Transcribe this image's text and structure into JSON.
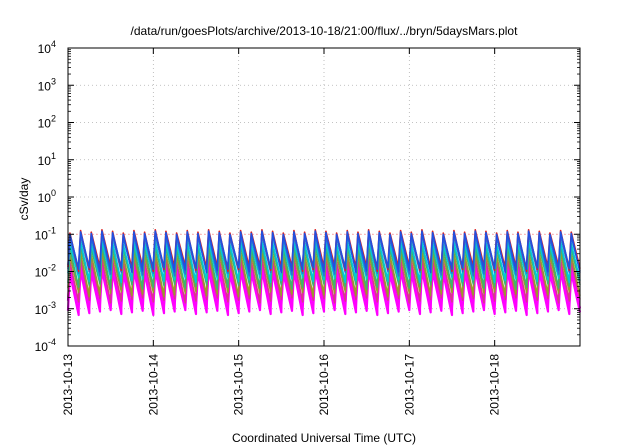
{
  "chart_data": {
    "type": "line",
    "title": "/data/run/goesPlots/archive/2013-10-18/21:00/flux/../bryn/5daysMars.plot",
    "xlabel": "Coordinated Universal Time (UTC)",
    "ylabel": "cSv/day",
    "x_ticks": [
      "2013-10-13",
      "2013-10-14",
      "2013-10-15",
      "2013-10-16",
      "2013-10-17",
      "2013-10-18"
    ],
    "xlim": [
      "2013-10-13T00:00",
      "2013-10-19T00:00"
    ],
    "y_scale": "log",
    "y_ticks": [
      {
        "base": "10",
        "exp": "-4"
      },
      {
        "base": "10",
        "exp": "-3"
      },
      {
        "base": "10",
        "exp": "-2"
      },
      {
        "base": "10",
        "exp": "-1"
      },
      {
        "base": "10",
        "exp": "0"
      },
      {
        "base": "10",
        "exp": "1"
      },
      {
        "base": "10",
        "exp": "2"
      },
      {
        "base": "10",
        "exp": "3"
      },
      {
        "base": "10",
        "exp": "4"
      }
    ],
    "ylim": [
      0.0001,
      10000
    ],
    "grid": true,
    "legend": "none",
    "reference_line": {
      "y": 0.1,
      "color": "#ff9999",
      "style": "dashed"
    },
    "sawtooth_period_hours": 3,
    "series": [
      {
        "color": "#ff00ff",
        "peak": 0.01,
        "trough": 0.0008
      },
      {
        "color": "#ff00ff",
        "peak": 0.015,
        "trough": 0.0012
      },
      {
        "color": "#d63a8a",
        "peak": 0.02,
        "trough": 0.0017
      },
      {
        "color": "#9a9a2a",
        "peak": 0.03,
        "trough": 0.0025
      },
      {
        "color": "#3cb371",
        "peak": 0.045,
        "trough": 0.004
      },
      {
        "color": "#00c8d8",
        "peak": 0.06,
        "trough": 0.006
      },
      {
        "color": "#2f6fd6",
        "peak": 0.09,
        "trough": 0.009
      },
      {
        "color": "#dd2020",
        "peak": 0.12,
        "trough": 0.012
      },
      {
        "color": "#2050e0",
        "peak": 0.11,
        "trough": 0.011
      }
    ]
  }
}
